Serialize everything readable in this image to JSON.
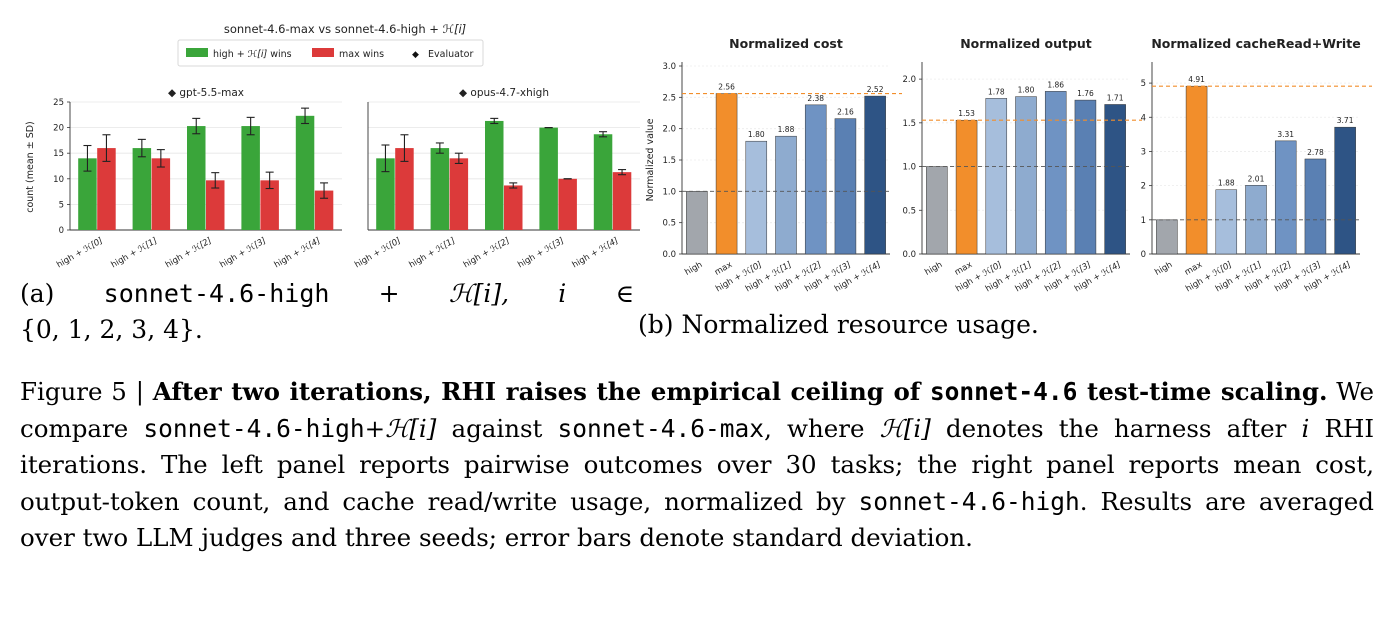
{
  "figure_left": {
    "suptitle_main": "sonnet-4.6-max vs sonnet-4.6-high + ",
    "suptitle_h": "ℋ[i]",
    "legend": {
      "green_main": "high + ",
      "green_h": "ℋ[i]",
      "green_tail": " wins",
      "red": "max wins",
      "evaluator_symbol": "◆",
      "evaluator": "Evaluator"
    },
    "ylabel": "count (mean ± SD)",
    "panel_titles": [
      "◆ gpt-5.5-max",
      "◆ opus-4.7-xhigh"
    ]
  },
  "figure_right": {
    "ylabel": "Normalized value",
    "titles": [
      "Normalized cost",
      "Normalized output",
      "Normalized cacheRead+Write"
    ]
  },
  "subcaption_a": {
    "label": "(a)",
    "code": "sonnet-4.6-high",
    "plus": "+",
    "h": "ℋ[i],",
    "i": "i",
    "in": "∈",
    "set": "{0, 1, 2, 3, 4}."
  },
  "subcaption_b": "(b) Normalized resource usage.",
  "caption": {
    "prefix": "Figure 5 | ",
    "bold_1": "After two iterations, RHI raises the empirical ceiling of ",
    "bold_code": "sonnet-4.6",
    "bold_2": " test-time scaling.",
    "t1": " We compare ",
    "code1": "sonnet-4.6-high",
    "t2": "+",
    "h1": "ℋ[i]",
    "t3": " against ",
    "code2": "sonnet-4.6-max",
    "t4": ", where ",
    "h2": "ℋ[i]",
    "t5": " denotes the harness after ",
    "i": "i",
    "t6": " RHI iterations. The left panel reports pairwise outcomes over 30 tasks; the right panel reports mean cost, output-token count, and cache read/write usage, normalized by ",
    "code3": "sonnet-4.6-high",
    "t7": ". Results are averaged over two LLM judges and three seeds; error bars denote standard deviation."
  },
  "chart_data": [
    {
      "type": "bar",
      "panel": "gpt-5.5-max",
      "categories": [
        "high + ℋ[0]",
        "high + ℋ[1]",
        "high + ℋ[2]",
        "high + ℋ[3]",
        "high + ℋ[4]"
      ],
      "series": [
        {
          "name": "high + ℋ[i] wins",
          "values": [
            14.0,
            16.0,
            20.3,
            20.3,
            22.3
          ],
          "sd": [
            2.5,
            1.7,
            1.5,
            1.7,
            1.5
          ],
          "color": "#3aa53a"
        },
        {
          "name": "max wins",
          "values": [
            16.0,
            14.0,
            9.7,
            9.7,
            7.7
          ],
          "sd": [
            2.6,
            1.7,
            1.5,
            1.6,
            1.5
          ],
          "color": "#dc3a3a"
        }
      ],
      "ylim": [
        0,
        25
      ],
      "yticks": [
        0,
        5,
        10,
        15,
        20,
        25
      ],
      "grid": true
    },
    {
      "type": "bar",
      "panel": "opus-4.7-xhigh",
      "categories": [
        "high + ℋ[0]",
        "high + ℋ[1]",
        "high + ℋ[2]",
        "high + ℋ[3]",
        "high + ℋ[4]"
      ],
      "series": [
        {
          "name": "high + ℋ[i] wins",
          "values": [
            14.0,
            16.0,
            21.3,
            20.0,
            18.7
          ],
          "sd": [
            2.6,
            1.0,
            0.5,
            0.0,
            0.5
          ],
          "color": "#3aa53a"
        },
        {
          "name": "max wins",
          "values": [
            16.0,
            14.0,
            8.7,
            10.0,
            11.3
          ],
          "sd": [
            2.6,
            1.0,
            0.5,
            0.0,
            0.5
          ],
          "color": "#dc3a3a"
        }
      ],
      "ylim": [
        0,
        25
      ],
      "grid": true
    },
    {
      "type": "bar",
      "title": "Normalized cost",
      "categories": [
        "high",
        "max",
        "high + ℋ[0]",
        "high + ℋ[1]",
        "high + ℋ[2]",
        "high + ℋ[3]",
        "high + ℋ[4]"
      ],
      "values": [
        1.0,
        2.56,
        1.8,
        1.88,
        2.38,
        2.16,
        2.52
      ],
      "labels": [
        "",
        "2.56",
        "1.80",
        "1.88",
        "2.38",
        "2.16",
        "2.52"
      ],
      "ylim": [
        0,
        3.0
      ],
      "yticks": [
        "0.0",
        "0.5",
        "1.0",
        "1.5",
        "2.0",
        "2.5",
        "3.0"
      ],
      "baseline": 1.0,
      "max_line": 2.56
    },
    {
      "type": "bar",
      "title": "Normalized output",
      "categories": [
        "high",
        "max",
        "high + ℋ[0]",
        "high + ℋ[1]",
        "high + ℋ[2]",
        "high + ℋ[3]",
        "high + ℋ[4]"
      ],
      "values": [
        1.0,
        1.53,
        1.78,
        1.8,
        1.86,
        1.76,
        1.71
      ],
      "labels": [
        "",
        "1.53",
        "1.78",
        "1.80",
        "1.86",
        "1.76",
        "1.71"
      ],
      "ylim": [
        0,
        2.15
      ],
      "yticks": [
        "0.0",
        "0.5",
        "1.0",
        "1.5",
        "2.0"
      ],
      "baseline": 1.0,
      "max_line": 1.53
    },
    {
      "type": "bar",
      "title": "Normalized cacheRead+Write",
      "categories": [
        "high",
        "max",
        "high + ℋ[0]",
        "high + ℋ[1]",
        "high + ℋ[2]",
        "high + ℋ[3]",
        "high + ℋ[4]"
      ],
      "values": [
        1.0,
        4.91,
        1.88,
        2.01,
        3.31,
        2.78,
        3.71
      ],
      "labels": [
        "",
        "4.91",
        "1.88",
        "2.01",
        "3.31",
        "2.78",
        "3.71"
      ],
      "ylim": [
        0,
        5.5
      ],
      "yticks": [
        "0",
        "1",
        "2",
        "3",
        "4",
        "5"
      ],
      "baseline": 1.0,
      "max_line": 4.91
    }
  ]
}
